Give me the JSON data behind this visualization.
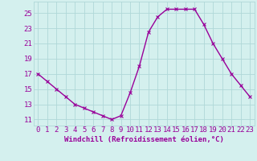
{
  "x": [
    0,
    1,
    2,
    3,
    4,
    5,
    6,
    7,
    8,
    9,
    10,
    11,
    12,
    13,
    14,
    15,
    16,
    17,
    18,
    19,
    20,
    21,
    22,
    23
  ],
  "y": [
    17,
    16,
    15,
    14,
    13,
    12.5,
    12,
    11.5,
    11,
    11.5,
    14.5,
    18,
    22.5,
    24.5,
    25.5,
    25.5,
    25.5,
    25.5,
    23.5,
    21,
    19,
    17,
    15.5,
    14
  ],
  "line_color": "#990099",
  "marker": "x",
  "marker_color": "#990099",
  "bg_color": "#d4f0ee",
  "grid_color": "#b0d8d8",
  "tick_color": "#990099",
  "label_color": "#990099",
  "xlabel": "Windchill (Refroidissement éolien,°C)",
  "xtick_labels": [
    "0",
    "1",
    "2",
    "3",
    "4",
    "5",
    "6",
    "7",
    "8",
    "9",
    "10",
    "11",
    "12",
    "13",
    "14",
    "15",
    "16",
    "17",
    "18",
    "19",
    "20",
    "21",
    "22",
    "23"
  ],
  "ytick_values": [
    11,
    13,
    15,
    17,
    19,
    21,
    23,
    25
  ],
  "ylim": [
    10.2,
    26.5
  ],
  "xlim": [
    -0.5,
    23.5
  ],
  "linewidth": 1.0,
  "markersize": 3,
  "font_size": 6.5
}
